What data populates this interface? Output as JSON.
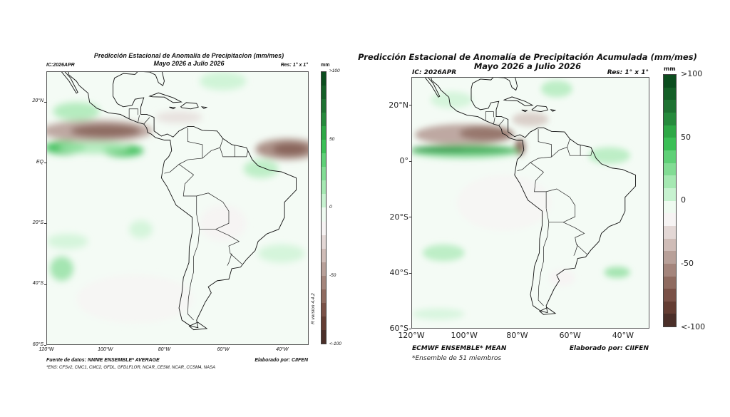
{
  "colorbar_colors": [
    "#0b4d1e",
    "#145f27",
    "#1e7232",
    "#268a3c",
    "#2ea846",
    "#3bbf56",
    "#5fd077",
    "#82dc94",
    "#a5e8b2",
    "#c7f2d0",
    "#eefaf0",
    "#f6f3f3",
    "#e3d7d5",
    "#cfbcb7",
    "#b8a099",
    "#a4857c",
    "#8f6b60",
    "#7a5147",
    "#643d33",
    "#4b2f29"
  ],
  "left": {
    "title": "Predicción Estacional de Anomalía de Precipitacion (mm/mes)",
    "subtitle": "Mayo 2026 a Julio 2026",
    "ic": "IC:2026APR",
    "res": "Res: 1° x 1°",
    "unit": "mm",
    "colorbar_labels": [
      ">100",
      "50",
      "0",
      "-50",
      "<-100"
    ],
    "lat_labels": [
      "20°N",
      "EQ",
      "20°S",
      "40°S",
      "60°S"
    ],
    "lon_labels": [
      "120°W",
      "100°W",
      "80°W",
      "60°W",
      "40°W"
    ],
    "source": "Fuente de datos: NMME ENSEMBLE* AVERAGE",
    "credit": "Elaborado por: CIIFEN",
    "note": "*ENS: CFSv2, CMC1, CMC2, GFDL, GFDLFLOR, NCAR_CESM, NCAR_CCSM4, NASA",
    "version": "R version 4.4.2"
  },
  "right": {
    "title": "Predicción Estacional de Anomalía de Precipitación Acumulada (mm/mes)",
    "subtitle": "Mayo 2026 a Julio 2026",
    "ic": "IC: 2026APR",
    "res": "Res: 1° x 1°",
    "unit": "mm",
    "colorbar_labels": [
      ">100",
      "50",
      "0",
      "-50",
      "<-100"
    ],
    "lat_labels": [
      "20°N",
      "0°",
      "20°S",
      "40°S",
      "60°S"
    ],
    "lon_labels": [
      "120°W",
      "100°W",
      "80°W",
      "60°W",
      "40°W"
    ],
    "source": "ECMWF ENSEMBLE* MEAN",
    "credit": "Elaborado por: CIIFEN",
    "note": "*Ensemble de 51 miembros"
  }
}
